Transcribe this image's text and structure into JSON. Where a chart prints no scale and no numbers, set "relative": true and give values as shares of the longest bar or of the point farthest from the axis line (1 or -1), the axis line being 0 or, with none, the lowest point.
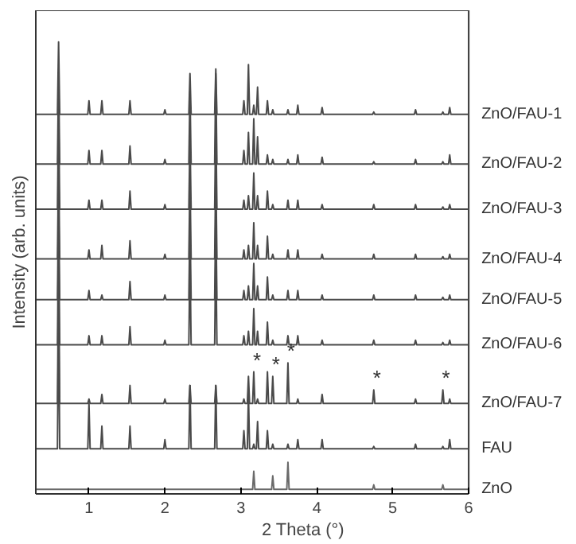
{
  "chart_data": {
    "type": "line",
    "relative": true,
    "xlabel": "2 Theta (°)",
    "ylabel": "Intensity (arb. units)",
    "xlim": [
      0.3,
      6
    ],
    "xticks": [
      1,
      2,
      3,
      4,
      5,
      6
    ],
    "grid": false,
    "marker": "none",
    "line_style": "solid",
    "x": [
      0.3,
      0.585,
      0.6,
      0.615,
      0.985,
      1.0,
      1.015,
      1.155,
      1.17,
      1.185,
      1.525,
      1.54,
      1.555,
      1.985,
      2.0,
      2.015,
      2.315,
      2.33,
      2.345,
      2.655,
      2.67,
      2.685,
      3.025,
      3.04,
      3.055,
      3.085,
      3.1,
      3.115,
      3.155,
      3.17,
      3.185,
      3.205,
      3.22,
      3.235,
      3.335,
      3.35,
      3.365,
      3.405,
      3.42,
      3.435,
      3.605,
      3.62,
      3.635,
      3.735,
      3.75,
      3.765,
      4.055,
      4.07,
      4.085,
      4.735,
      4.75,
      4.765,
      5.285,
      5.3,
      5.315,
      5.645,
      5.66,
      5.675,
      5.735,
      5.75,
      5.765,
      6.0
    ],
    "series": [
      {
        "name": "ZnO/FAU-1",
        "color": "#4a4a4a",
        "values": [
          0.84,
          0.84,
          1.0,
          0.84,
          0.84,
          0.87,
          0.84,
          0.84,
          0.87,
          0.84,
          0.84,
          0.87,
          0.84,
          0.84,
          0.85,
          0.84,
          0.84,
          0.93,
          0.84,
          0.84,
          0.94,
          0.84,
          0.84,
          0.87,
          0.84,
          0.84,
          0.95,
          0.84,
          0.84,
          0.86,
          0.84,
          0.84,
          0.9,
          0.84,
          0.84,
          0.87,
          0.84,
          0.84,
          0.85,
          0.84,
          0.84,
          0.85,
          0.84,
          0.84,
          0.86,
          0.84,
          0.84,
          0.855,
          0.84,
          0.84,
          0.845,
          0.84,
          0.84,
          0.85,
          0.84,
          0.84,
          0.845,
          0.84,
          0.84,
          0.855,
          0.84,
          0.84
        ]
      },
      {
        "name": "ZnO/FAU-2",
        "color": "#4a4a4a",
        "values": [
          0.73,
          0.73,
          0.93,
          0.73,
          0.73,
          0.76,
          0.73,
          0.73,
          0.76,
          0.73,
          0.73,
          0.77,
          0.73,
          0.73,
          0.74,
          0.73,
          0.73,
          0.89,
          0.73,
          0.73,
          0.93,
          0.73,
          0.73,
          0.76,
          0.73,
          0.73,
          0.8,
          0.73,
          0.73,
          0.83,
          0.73,
          0.73,
          0.79,
          0.73,
          0.73,
          0.75,
          0.73,
          0.73,
          0.74,
          0.73,
          0.73,
          0.74,
          0.73,
          0.73,
          0.75,
          0.73,
          0.73,
          0.745,
          0.73,
          0.73,
          0.735,
          0.73,
          0.73,
          0.74,
          0.73,
          0.73,
          0.735,
          0.73,
          0.73,
          0.75,
          0.73,
          0.73
        ]
      },
      {
        "name": "ZnO/FAU-3",
        "color": "#4a4a4a",
        "values": [
          0.63,
          0.63,
          0.85,
          0.63,
          0.63,
          0.65,
          0.63,
          0.63,
          0.65,
          0.63,
          0.63,
          0.67,
          0.63,
          0.63,
          0.64,
          0.63,
          0.63,
          0.79,
          0.63,
          0.63,
          0.83,
          0.63,
          0.63,
          0.65,
          0.63,
          0.63,
          0.66,
          0.63,
          0.63,
          0.71,
          0.63,
          0.63,
          0.66,
          0.63,
          0.63,
          0.67,
          0.63,
          0.63,
          0.64,
          0.63,
          0.63,
          0.65,
          0.63,
          0.63,
          0.65,
          0.63,
          0.63,
          0.64,
          0.63,
          0.63,
          0.64,
          0.63,
          0.63,
          0.64,
          0.63,
          0.63,
          0.635,
          0.63,
          0.63,
          0.64,
          0.63,
          0.63
        ]
      },
      {
        "name": "ZnO/FAU-4",
        "color": "#4a4a4a",
        "values": [
          0.52,
          0.52,
          0.74,
          0.52,
          0.52,
          0.54,
          0.52,
          0.52,
          0.55,
          0.52,
          0.52,
          0.56,
          0.52,
          0.52,
          0.53,
          0.52,
          0.52,
          0.7,
          0.52,
          0.52,
          0.72,
          0.52,
          0.52,
          0.54,
          0.52,
          0.52,
          0.55,
          0.52,
          0.52,
          0.6,
          0.52,
          0.52,
          0.55,
          0.52,
          0.52,
          0.57,
          0.52,
          0.52,
          0.53,
          0.52,
          0.52,
          0.54,
          0.52,
          0.52,
          0.54,
          0.52,
          0.52,
          0.53,
          0.52,
          0.52,
          0.53,
          0.52,
          0.52,
          0.53,
          0.52,
          0.52,
          0.525,
          0.52,
          0.52,
          0.53,
          0.52,
          0.52
        ]
      },
      {
        "name": "ZnO/FAU-5",
        "color": "#4a4a4a",
        "values": [
          0.43,
          0.43,
          0.65,
          0.43,
          0.43,
          0.45,
          0.43,
          0.43,
          0.44,
          0.43,
          0.43,
          0.47,
          0.43,
          0.43,
          0.44,
          0.43,
          0.43,
          0.61,
          0.43,
          0.43,
          0.63,
          0.43,
          0.43,
          0.45,
          0.43,
          0.43,
          0.46,
          0.43,
          0.43,
          0.51,
          0.43,
          0.43,
          0.46,
          0.43,
          0.43,
          0.48,
          0.43,
          0.43,
          0.44,
          0.43,
          0.43,
          0.45,
          0.43,
          0.43,
          0.45,
          0.43,
          0.43,
          0.44,
          0.43,
          0.43,
          0.44,
          0.43,
          0.43,
          0.44,
          0.43,
          0.43,
          0.435,
          0.43,
          0.43,
          0.44,
          0.43,
          0.43
        ]
      },
      {
        "name": "ZnO/FAU-6",
        "color": "#4a4a4a",
        "values": [
          0.33,
          0.33,
          0.58,
          0.33,
          0.33,
          0.35,
          0.33,
          0.33,
          0.35,
          0.33,
          0.33,
          0.37,
          0.33,
          0.33,
          0.34,
          0.33,
          0.33,
          0.53,
          0.33,
          0.33,
          0.55,
          0.33,
          0.33,
          0.35,
          0.33,
          0.33,
          0.36,
          0.33,
          0.33,
          0.41,
          0.33,
          0.33,
          0.36,
          0.33,
          0.33,
          0.38,
          0.33,
          0.33,
          0.34,
          0.33,
          0.33,
          0.35,
          0.33,
          0.33,
          0.35,
          0.33,
          0.33,
          0.34,
          0.33,
          0.33,
          0.34,
          0.33,
          0.33,
          0.34,
          0.33,
          0.33,
          0.335,
          0.33,
          0.33,
          0.34,
          0.33,
          0.33
        ]
      },
      {
        "name": "ZnO/FAU-7",
        "color": "#4a4a4a",
        "values": [
          0.2,
          0.2,
          0.5,
          0.2,
          0.2,
          0.21,
          0.2,
          0.2,
          0.22,
          0.2,
          0.2,
          0.24,
          0.2,
          0.2,
          0.21,
          0.2,
          0.2,
          0.24,
          0.2,
          0.2,
          0.24,
          0.2,
          0.2,
          0.21,
          0.2,
          0.2,
          0.26,
          0.2,
          0.2,
          0.27,
          0.2,
          0.2,
          0.21,
          0.2,
          0.2,
          0.27,
          0.2,
          0.2,
          0.26,
          0.2,
          0.2,
          0.29,
          0.2,
          0.2,
          0.21,
          0.2,
          0.2,
          0.22,
          0.2,
          0.2,
          0.23,
          0.2,
          0.2,
          0.21,
          0.2,
          0.2,
          0.23,
          0.2,
          0.2,
          0.21,
          0.2,
          0.2
        ]
      },
      {
        "name": "FAU",
        "color": "#4a4a4a",
        "values": [
          0.1,
          0.1,
          0.42,
          0.1,
          0.1,
          0.2,
          0.1,
          0.1,
          0.15,
          0.1,
          0.1,
          0.15,
          0.1,
          0.1,
          0.12,
          0.1,
          0.1,
          0.24,
          0.1,
          0.1,
          0.24,
          0.1,
          0.1,
          0.14,
          0.1,
          0.1,
          0.22,
          0.1,
          0.1,
          0.11,
          0.1,
          0.1,
          0.16,
          0.1,
          0.1,
          0.14,
          0.1,
          0.1,
          0.11,
          0.1,
          0.1,
          0.11,
          0.1,
          0.1,
          0.12,
          0.1,
          0.1,
          0.12,
          0.1,
          0.1,
          0.105,
          0.1,
          0.1,
          0.11,
          0.1,
          0.1,
          0.105,
          0.1,
          0.1,
          0.12,
          0.1,
          0.1
        ]
      },
      {
        "name": "ZnO",
        "color": "#6a6a6a",
        "values": [
          0.01,
          0.01,
          0.01,
          0.01,
          0.01,
          0.01,
          0.01,
          0.01,
          0.01,
          0.01,
          0.01,
          0.01,
          0.01,
          0.01,
          0.01,
          0.01,
          0.01,
          0.01,
          0.01,
          0.01,
          0.01,
          0.01,
          0.01,
          0.01,
          0.01,
          0.01,
          0.01,
          0.01,
          0.01,
          0.05,
          0.01,
          0.01,
          0.01,
          0.01,
          0.01,
          0.01,
          0.01,
          0.01,
          0.04,
          0.01,
          0.01,
          0.07,
          0.01,
          0.01,
          0.01,
          0.01,
          0.01,
          0.01,
          0.01,
          0.01,
          0.02,
          0.01,
          0.01,
          0.01,
          0.01,
          0.01,
          0.02,
          0.01,
          0.01,
          0.01,
          0.01,
          0.01
        ]
      }
    ],
    "annotations": [
      {
        "text": "*",
        "x": 3.17,
        "y": 0.27
      },
      {
        "text": "*",
        "x": 3.42,
        "y": 0.26
      },
      {
        "text": "*",
        "x": 3.62,
        "y": 0.29
      },
      {
        "text": "*",
        "x": 4.75,
        "y": 0.23
      },
      {
        "text": "*",
        "x": 5.66,
        "y": 0.23
      }
    ]
  }
}
